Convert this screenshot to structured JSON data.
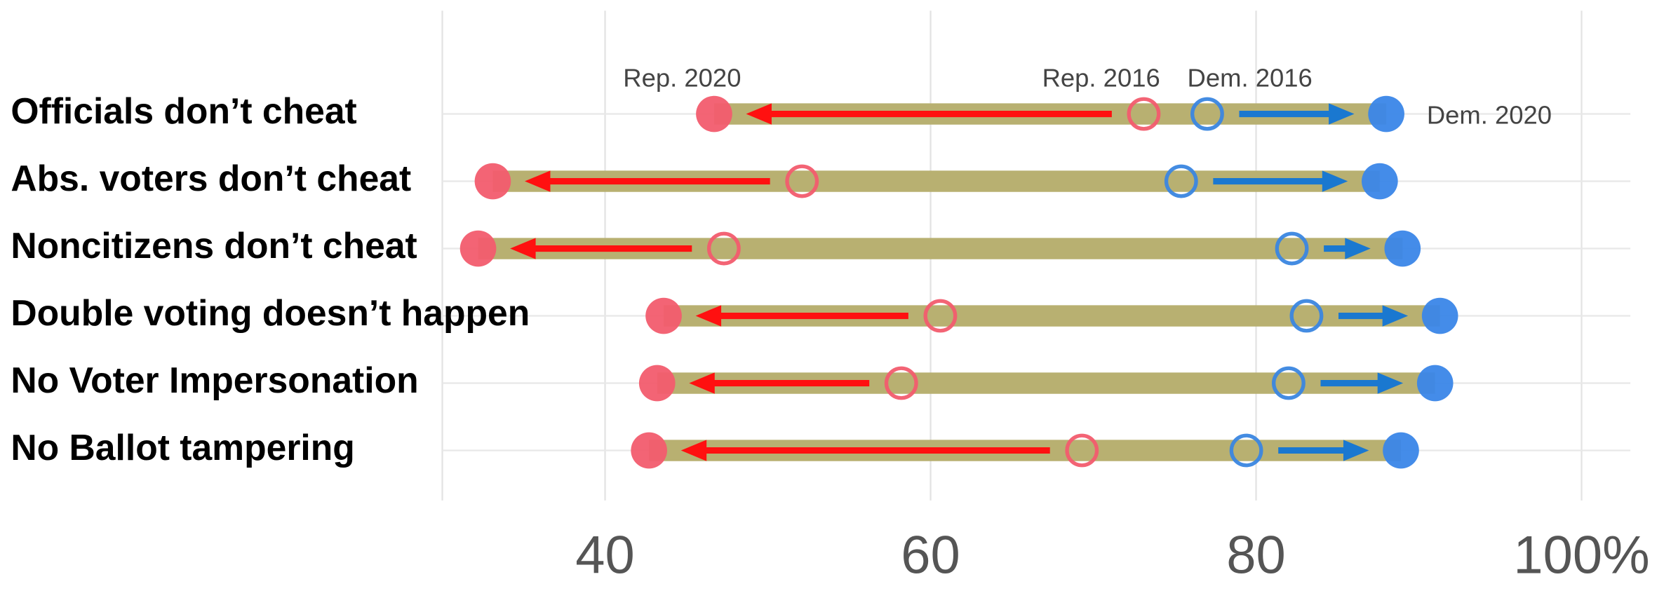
{
  "chart_data": {
    "type": "dumbbell",
    "categories": [
      "Officials don’t cheat",
      "Abs. voters don’t cheat",
      "Noncitizens don’t cheat",
      "Double voting doesn’t happen",
      "No Voter Impersonation",
      "No Ballot tampering"
    ],
    "series": [
      {
        "name": "Rep. 2020",
        "color": "#f25c6e",
        "filled": true,
        "values": [
          46.7,
          33.1,
          32.2,
          43.6,
          43.2,
          42.7
        ]
      },
      {
        "name": "Rep. 2016",
        "color": "#f25c6e",
        "filled": false,
        "values": [
          73.1,
          52.1,
          47.3,
          60.6,
          58.2,
          69.3
        ]
      },
      {
        "name": "Dem. 2016",
        "color": "#3a86e0",
        "filled": false,
        "values": [
          77.0,
          75.4,
          82.2,
          83.1,
          82.0,
          79.4
        ]
      },
      {
        "name": "Dem. 2020",
        "color": "#3a86e8",
        "filled": true,
        "values": [
          88.0,
          87.6,
          89.0,
          91.3,
          91.0,
          88.9
        ]
      }
    ],
    "bar_color": "#b8b071",
    "arrow_colors": [
      "#ff1010",
      "#1a78d0"
    ],
    "xlim": [
      30,
      103
    ],
    "xticks": [
      40,
      60,
      80,
      {
        "value": 100,
        "label": "100%"
      }
    ],
    "grid": true
  }
}
